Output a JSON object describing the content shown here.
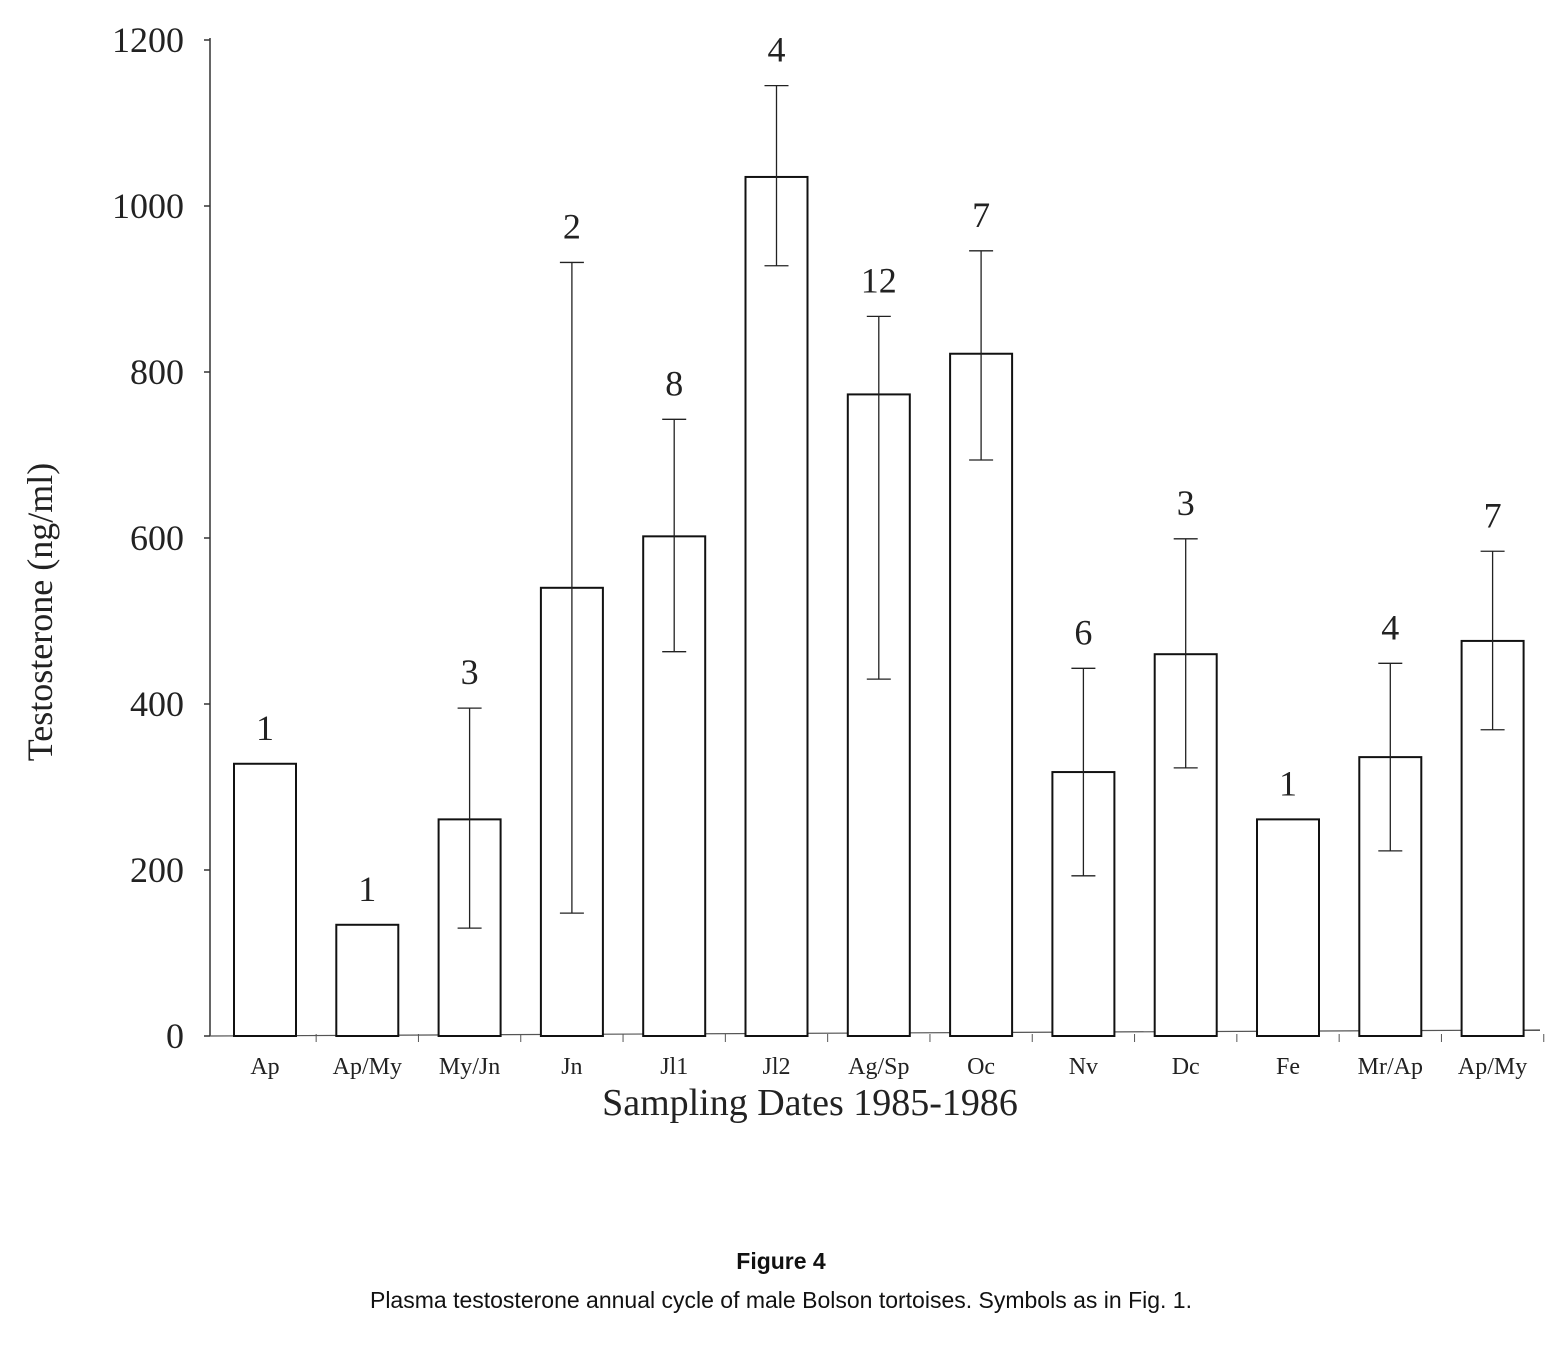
{
  "chart_data": {
    "type": "bar",
    "title": "",
    "xlabel": "Sampling Dates 1985-1986",
    "ylabel": "Testosterone (ng/ml)",
    "ylim": [
      0,
      1200
    ],
    "yticks": [
      "0",
      "200",
      "400",
      "600",
      "800",
      "1000",
      "1200"
    ],
    "categories": [
      "Ap",
      "Ap/My",
      "My/Jn",
      "Jn",
      "Jl1",
      "Jl2",
      "Ag/Sp",
      "Oc",
      "Nv",
      "Dc",
      "Fe",
      "Mr/Ap",
      "Ap/My"
    ],
    "values": [
      328,
      134,
      261,
      540,
      602,
      1035,
      773,
      822,
      318,
      460,
      261,
      336,
      476
    ],
    "error_upper": [
      null,
      null,
      395,
      932,
      743,
      1145,
      867,
      946,
      443,
      599,
      null,
      449,
      584
    ],
    "error_lower": [
      null,
      null,
      130,
      148,
      463,
      928,
      430,
      694,
      193,
      323,
      null,
      223,
      369
    ],
    "n_labels": [
      "1",
      "1",
      "3",
      "2",
      "8",
      "4",
      "12",
      "7",
      "6",
      "3",
      "1",
      "4",
      "7"
    ],
    "grid": false,
    "legend": "none"
  },
  "caption": {
    "figure_label": "Figure 4",
    "text": "Plasma testosterone annual cycle of male Bolson tortoises. Symbols as in Fig. 1."
  }
}
